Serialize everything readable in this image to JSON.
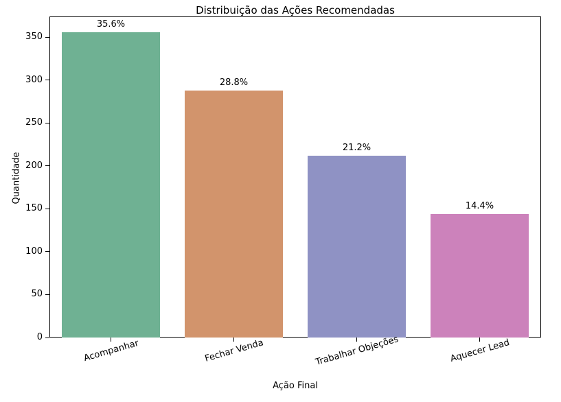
{
  "chart_data": {
    "type": "bar",
    "title": "Distribuição das Ações Recomendadas",
    "xlabel": "Ação Final",
    "ylabel": "Quantidade",
    "categories": [
      "Acompanhar",
      "Fechar Venda",
      "Trabalhar Objeções",
      "Aquecer Lead"
    ],
    "values": [
      356,
      288,
      212,
      144
    ],
    "bar_labels": [
      "35.6%",
      "28.8%",
      "21.2%",
      "14.4%"
    ],
    "bar_colors": [
      "#6fb193",
      "#d2946c",
      "#8f92c4",
      "#cc82bb"
    ],
    "ylim": [
      0,
      374
    ],
    "yticks": [
      0,
      50,
      100,
      150,
      200,
      250,
      300,
      350
    ],
    "x_tick_rotation_deg": 16,
    "grid": false,
    "legend": "none",
    "background_color": "#ffffff",
    "axis_color": "#000000",
    "text_color": "#000000"
  }
}
